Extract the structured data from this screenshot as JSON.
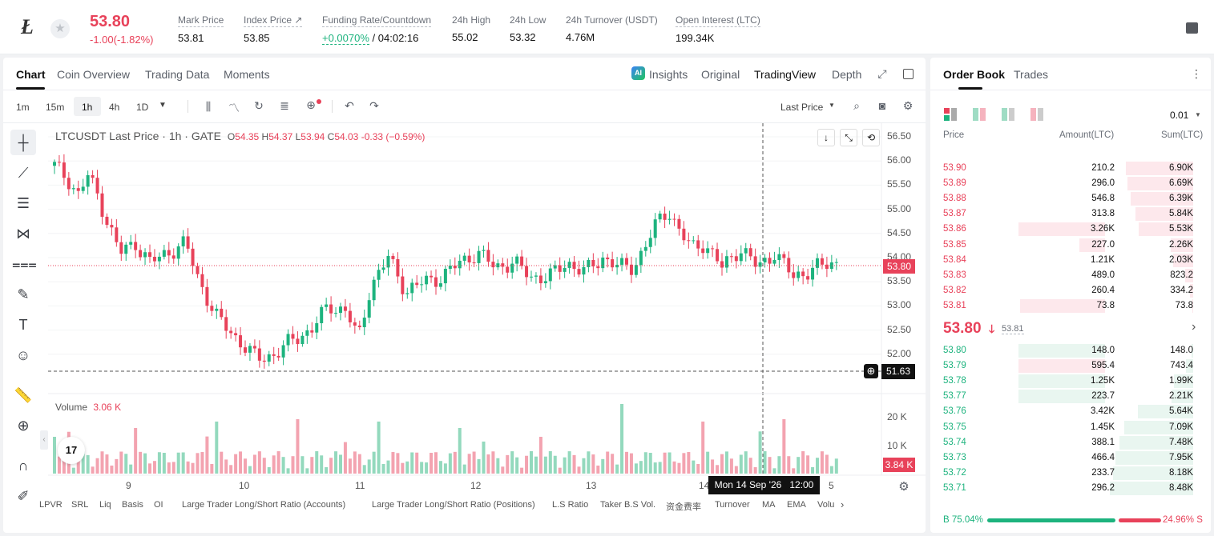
{
  "header": {
    "last_price": "53.80",
    "change": "-1.00(-1.82%)",
    "stats": [
      {
        "label": "Mark Price",
        "value": "53.81"
      },
      {
        "label": "Index Price ↗",
        "value": "53.85"
      },
      {
        "label": "Funding Rate/Countdown",
        "value": "+0.0070%",
        "value2": "/ 04:02:16"
      },
      {
        "label": "24h High",
        "value": "55.02"
      },
      {
        "label": "24h Low",
        "value": "53.32"
      },
      {
        "label": "24h Turnover (USDT)",
        "value": "4.76M"
      },
      {
        "label": "Open Interest (LTC)",
        "value": "199.34K"
      }
    ]
  },
  "chart_tabs": [
    "Chart",
    "Coin Overview",
    "Trading Data",
    "Moments"
  ],
  "view_tabs": {
    "insights": "Insights",
    "original": "Original",
    "tradingview": "TradingView",
    "depth": "Depth"
  },
  "intervals": [
    "1m",
    "15m",
    "1h",
    "4h",
    "1D"
  ],
  "price_type": "Last Price",
  "legend": {
    "symbol": "LTCUSDT Last Price · 1h · GATE",
    "o_label": "O",
    "o": "54.35",
    "h_label": "H",
    "h": "54.37",
    "l_label": "L",
    "l": "53.94",
    "c_label": "C",
    "c": "54.03",
    "chg": "-0.33 (−0.59%)"
  },
  "volume_legend": {
    "label": "Volume",
    "value": "3.06 K"
  },
  "price_axis": [
    "56.50",
    "56.00",
    "55.50",
    "55.00",
    "54.50",
    "54.00",
    "53.50",
    "53.00",
    "52.50",
    "52.00"
  ],
  "current_price_tag": "53.80",
  "crosshair_price": "51.63",
  "volume_axis": [
    "20 K",
    "10 K"
  ],
  "volume_tag": "3.84 K",
  "time_axis": [
    "9",
    "10",
    "11",
    "12",
    "13",
    "14",
    "5"
  ],
  "crosshair_time": "Mon 14 Sep '26   12:00",
  "indicators": [
    "LPVR",
    "SRL",
    "Liq",
    "Basis",
    "OI",
    "Large Trader Long/Short Ratio (Accounts)",
    "Large Trader Long/Short Ratio (Positions)",
    "L.S Ratio",
    "Taker B.S Vol.",
    "资金费率",
    "Turnover",
    "MA",
    "EMA",
    "Volu"
  ],
  "tv_logo": "17",
  "orderbook": {
    "tabs": [
      "Order Book",
      "Trades"
    ],
    "precision": "0.01",
    "headers": [
      "Price",
      "Amount(LTC)",
      "Sum(LTC)"
    ],
    "asks": [
      [
        "53.90",
        "210.2",
        "6.90K"
      ],
      [
        "53.89",
        "296.0",
        "6.69K"
      ],
      [
        "53.88",
        "546.8",
        "6.39K"
      ],
      [
        "53.87",
        "313.8",
        "5.84K"
      ],
      [
        "53.86",
        "3.26K",
        "5.53K"
      ],
      [
        "53.85",
        "227.0",
        "2.26K"
      ],
      [
        "53.84",
        "1.21K",
        "2.03K"
      ],
      [
        "53.83",
        "489.0",
        "823.2"
      ],
      [
        "53.82",
        "260.4",
        "334.2"
      ],
      [
        "53.81",
        "73.8",
        "73.8"
      ]
    ],
    "ask_sum_frac": [
      0.81,
      0.79,
      0.75,
      0.69,
      0.65,
      0.27,
      0.24,
      0.1,
      0.04,
      0.01
    ],
    "ask_amt_frac": [
      0,
      0,
      0,
      0,
      1,
      0.3,
      0,
      0,
      0,
      0.98
    ],
    "mid_price": "53.80",
    "mark": "53.81",
    "bids": [
      [
        "53.80",
        "148.0",
        "148.0"
      ],
      [
        "53.79",
        "595.4",
        "743.4"
      ],
      [
        "53.78",
        "1.25K",
        "1.99K"
      ],
      [
        "53.77",
        "223.7",
        "2.21K"
      ],
      [
        "53.76",
        "3.42K",
        "5.64K"
      ],
      [
        "53.75",
        "1.45K",
        "7.09K"
      ],
      [
        "53.74",
        "388.1",
        "7.48K"
      ],
      [
        "53.73",
        "466.4",
        "7.95K"
      ],
      [
        "53.72",
        "233.7",
        "8.18K"
      ],
      [
        "53.71",
        "296.2",
        "8.48K"
      ]
    ],
    "bid_sum_frac": [
      0.02,
      0.09,
      0.23,
      0.26,
      0.66,
      0.83,
      0.88,
      0.93,
      0.96,
      1.0
    ],
    "bid_amt_frac": [
      1,
      1,
      1,
      1,
      0,
      0,
      0,
      0,
      0,
      0
    ],
    "bid_amt_color": [
      "#e9f6f0",
      "#fde8ec",
      "#e9f6f0",
      "#e9f6f0",
      "#e9f6f0",
      "#e9f6f0",
      "#e9f6f0",
      "#e9f6f0",
      "#e9f6f0",
      "#e9f6f0"
    ],
    "buy_pct": "B 75.04%",
    "sell_pct": "24.96% S",
    "buy_frac": 0.7504
  },
  "colors": {
    "up": "#1db37e",
    "down": "#e8425a"
  }
}
